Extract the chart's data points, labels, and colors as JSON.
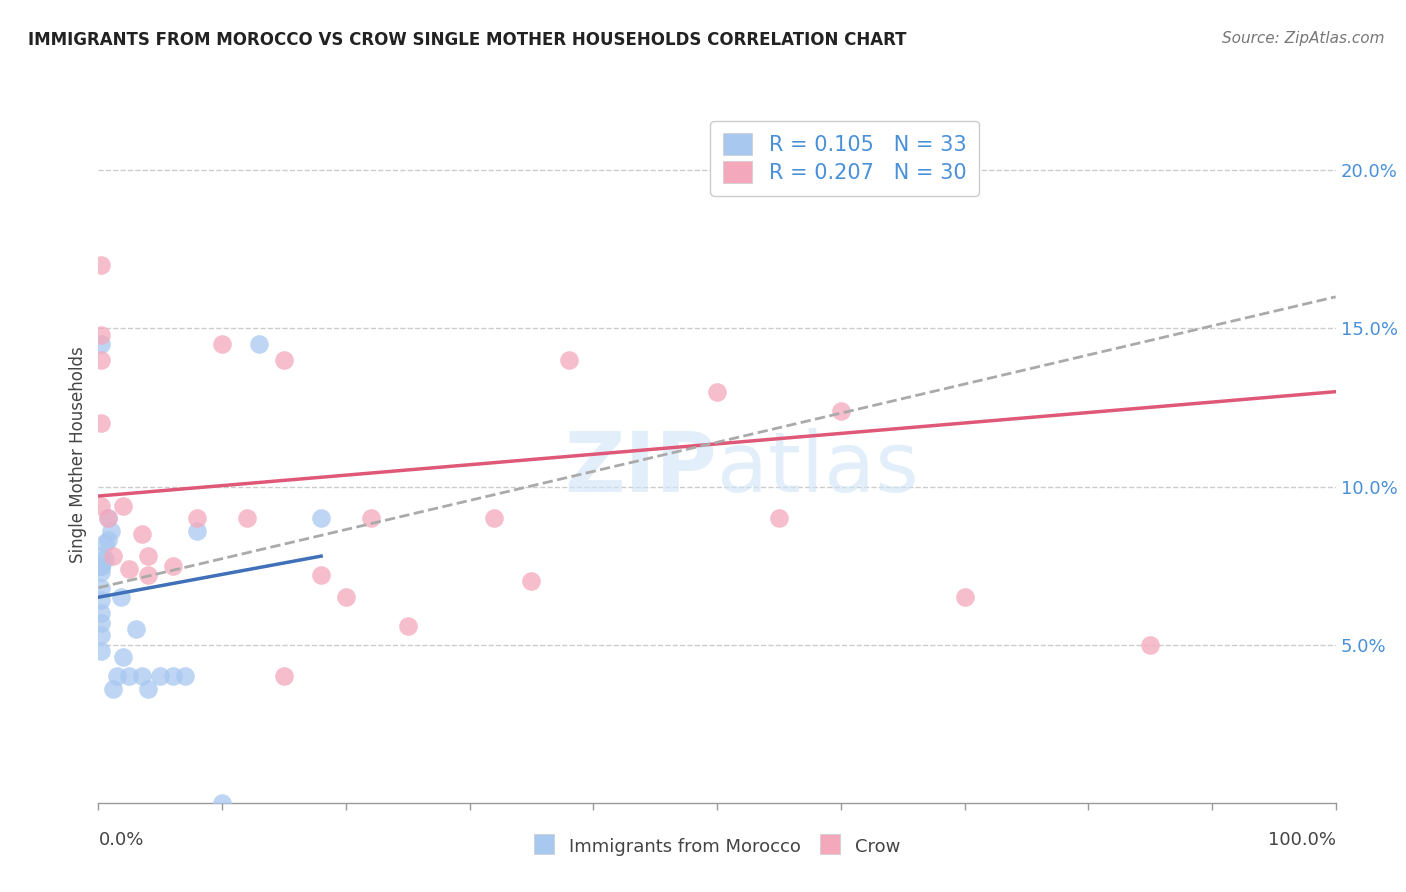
{
  "title": "IMMIGRANTS FROM MOROCCO VS CROW SINGLE MOTHER HOUSEHOLDS CORRELATION CHART",
  "source": "Source: ZipAtlas.com",
  "ylabel": "Single Mother Households",
  "legend_bottom": [
    "Immigrants from Morocco",
    "Crow"
  ],
  "blue_R": "0.105",
  "blue_N": "33",
  "pink_R": "0.207",
  "pink_N": "30",
  "blue_color": "#a8c8f0",
  "pink_color": "#f4a8bc",
  "blue_line_color": "#4070b8",
  "pink_line_color": "#e05878",
  "dashed_line_color": "#aaaaaa",
  "xlim": [
    0.0,
    1.0
  ],
  "ylim": [
    0.0,
    0.22
  ],
  "yticks": [
    0.05,
    0.1,
    0.15,
    0.2
  ],
  "ytick_labels": [
    "5.0%",
    "10.0%",
    "15.0%",
    "20.0%"
  ],
  "blue_scatter_x": [
    0.002,
    0.002,
    0.002,
    0.002,
    0.002,
    0.002,
    0.002,
    0.002,
    0.002,
    0.002,
    0.002,
    0.002,
    0.005,
    0.005,
    0.008,
    0.008,
    0.01,
    0.012,
    0.015,
    0.018,
    0.02,
    0.025,
    0.03,
    0.035,
    0.04,
    0.05,
    0.06,
    0.07,
    0.08,
    0.1,
    0.13,
    0.18,
    0.002
  ],
  "blue_scatter_y": [
    0.078,
    0.073,
    0.068,
    0.064,
    0.06,
    0.075,
    0.057,
    0.053,
    0.048,
    0.075,
    0.075,
    0.075,
    0.082,
    0.077,
    0.09,
    0.083,
    0.086,
    0.036,
    0.04,
    0.065,
    0.046,
    0.04,
    0.055,
    0.04,
    0.036,
    0.04,
    0.04,
    0.04,
    0.086,
    0.0,
    0.145,
    0.09,
    0.145
  ],
  "pink_scatter_x": [
    0.002,
    0.002,
    0.002,
    0.002,
    0.002,
    0.008,
    0.012,
    0.02,
    0.025,
    0.035,
    0.04,
    0.04,
    0.06,
    0.08,
    0.1,
    0.12,
    0.15,
    0.18,
    0.2,
    0.22,
    0.25,
    0.32,
    0.35,
    0.38,
    0.5,
    0.55,
    0.6,
    0.7,
    0.85,
    0.15
  ],
  "pink_scatter_y": [
    0.17,
    0.148,
    0.14,
    0.12,
    0.094,
    0.09,
    0.078,
    0.094,
    0.074,
    0.085,
    0.078,
    0.072,
    0.075,
    0.09,
    0.145,
    0.09,
    0.14,
    0.072,
    0.065,
    0.09,
    0.056,
    0.09,
    0.07,
    0.14,
    0.13,
    0.09,
    0.124,
    0.065,
    0.05,
    0.04
  ],
  "blue_line_x": [
    0.0,
    0.18
  ],
  "blue_line_y": [
    0.065,
    0.078
  ],
  "pink_line_x": [
    0.0,
    1.0
  ],
  "pink_line_y": [
    0.097,
    0.13
  ],
  "dashed_line_x": [
    0.0,
    1.0
  ],
  "dashed_line_y": [
    0.068,
    0.16
  ]
}
